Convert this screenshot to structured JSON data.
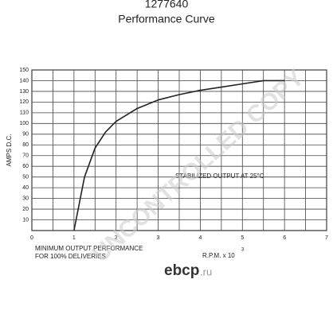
{
  "chart_data": {
    "type": "line",
    "title": "1277640",
    "subtitle": "Performance Curve",
    "xlabel": "R.P.M. x 10",
    "xlabel_exponent": "3",
    "ylabel": "AMPS D.C.",
    "annotation": "STABILIZED OUTPUT AT 25°C",
    "footnote": [
      "MINIMUM OUTPUT PERFORMANCE",
      "FOR 100% DELIVERIES"
    ],
    "watermark": "UNCONTROLLED COPY",
    "logo": "ebcp",
    "logo_suffix": ".ru",
    "x": [
      1,
      1.25,
      1.5,
      1.75,
      2,
      2.5,
      3,
      3.5,
      4,
      4.5,
      5,
      5.5,
      6
    ],
    "series": [
      {
        "name": "output",
        "color": "#222222",
        "values": [
          0,
          50,
          77,
          92,
          102,
          114,
          122,
          127,
          131,
          134,
          137,
          140,
          140
        ]
      }
    ],
    "xlim": [
      0,
      7
    ],
    "xticks": [
      0,
      1,
      2,
      3,
      4,
      5,
      6,
      7
    ],
    "ylim": [
      0,
      150
    ],
    "yticks": [
      10,
      20,
      30,
      40,
      50,
      60,
      70,
      80,
      90,
      100,
      110,
      120,
      130,
      140,
      150
    ],
    "grid": true
  }
}
